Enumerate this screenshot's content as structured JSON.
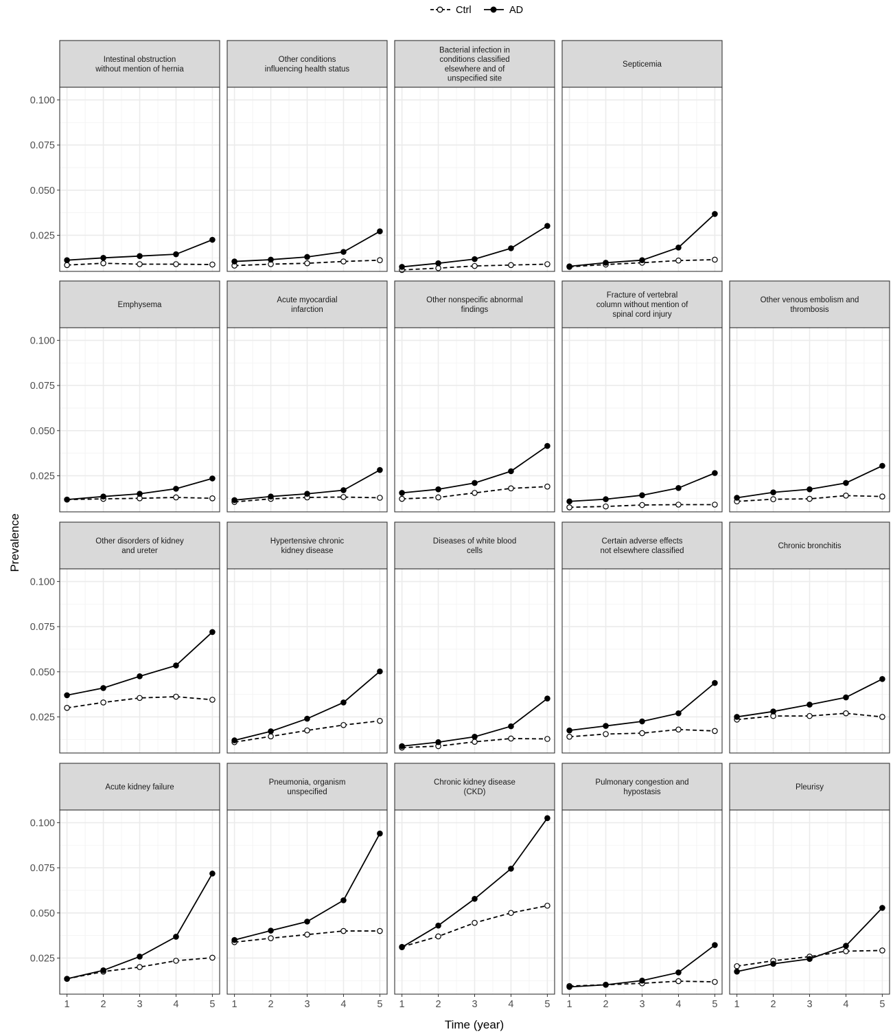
{
  "legend": {
    "items": [
      {
        "label": "Ctrl",
        "style": "dashed",
        "marker": "open"
      },
      {
        "label": "AD",
        "style": "solid",
        "marker": "filled"
      }
    ]
  },
  "axes": {
    "xlabel": "Time (year)",
    "ylabel": "Prevalence",
    "y_ticks": [
      "0.100",
      "0.075",
      "0.050",
      "0.025"
    ],
    "x_ticks": [
      "1",
      "2",
      "3",
      "4",
      "5"
    ]
  },
  "colors": {
    "strip_bg": "#d9d9d9",
    "grid": "#ebebeb",
    "line": "#000000"
  },
  "chart_data": {
    "type": "line",
    "facet_layout": {
      "rows": 4,
      "cols": 5
    },
    "x": [
      1,
      2,
      3,
      4,
      5
    ],
    "ylim": [
      0.005,
      0.107
    ],
    "y_ticks": [
      0.025,
      0.05,
      0.075,
      0.1
    ],
    "xlabel": "Time (year)",
    "ylabel": "Prevalence",
    "legend_position": "top",
    "grid": true,
    "series_names": [
      "Ctrl",
      "AD"
    ],
    "panels": [
      {
        "title": "Intestinal obstruction without mention of hernia",
        "row": 0,
        "col": 0,
        "Ctrl": [
          0.0085,
          0.0095,
          0.009,
          0.009,
          0.0088
        ],
        "AD": [
          0.0112,
          0.0125,
          0.0135,
          0.0145,
          0.0225
        ]
      },
      {
        "title": "Other conditions influencing health status",
        "row": 0,
        "col": 1,
        "Ctrl": [
          0.0082,
          0.009,
          0.0095,
          0.0105,
          0.0112
        ],
        "AD": [
          0.0105,
          0.0115,
          0.013,
          0.0158,
          0.0272
        ]
      },
      {
        "title": "Bacterial infection in conditions classified elsewhere and of unspecified site",
        "row": 0,
        "col": 2,
        "Ctrl": [
          0.0058,
          0.0068,
          0.008,
          0.0085,
          0.009
        ],
        "AD": [
          0.0075,
          0.0095,
          0.0118,
          0.0178,
          0.0302
        ]
      },
      {
        "title": "Septicemia",
        "row": 0,
        "col": 3,
        "Ctrl": [
          0.0075,
          0.0088,
          0.0098,
          0.011,
          0.0115
        ],
        "AD": [
          0.0078,
          0.0098,
          0.0112,
          0.0182,
          0.0368
        ]
      },
      {
        "title": "Emphysema",
        "row": 1,
        "col": 0,
        "Ctrl": [
          0.0118,
          0.0122,
          0.0125,
          0.013,
          0.0125
        ],
        "AD": [
          0.0118,
          0.0135,
          0.015,
          0.0178,
          0.0235
        ]
      },
      {
        "title": "Acute myocardial infarction",
        "row": 1,
        "col": 1,
        "Ctrl": [
          0.0105,
          0.0122,
          0.013,
          0.0132,
          0.0128
        ],
        "AD": [
          0.0115,
          0.0135,
          0.015,
          0.017,
          0.0282
        ]
      },
      {
        "title": "Other nonspecific abnormal findings",
        "row": 1,
        "col": 2,
        "Ctrl": [
          0.0122,
          0.013,
          0.0155,
          0.018,
          0.019
        ],
        "AD": [
          0.0155,
          0.0175,
          0.021,
          0.0275,
          0.0415
        ]
      },
      {
        "title": "Fracture of vertebral column without mention of spinal cord injury",
        "row": 1,
        "col": 3,
        "Ctrl": [
          0.0075,
          0.008,
          0.0088,
          0.009,
          0.009
        ],
        "AD": [
          0.0108,
          0.012,
          0.0142,
          0.0182,
          0.0265
        ]
      },
      {
        "title": "Other venous embolism and thrombosis",
        "row": 1,
        "col": 4,
        "Ctrl": [
          0.0108,
          0.012,
          0.0122,
          0.014,
          0.0135
        ],
        "AD": [
          0.0128,
          0.0158,
          0.0175,
          0.021,
          0.0305
        ]
      },
      {
        "title": "Other disorders of kidney and ureter",
        "row": 2,
        "col": 0,
        "Ctrl": [
          0.03,
          0.033,
          0.0355,
          0.0362,
          0.0345
        ],
        "AD": [
          0.037,
          0.041,
          0.0475,
          0.0535,
          0.072
        ]
      },
      {
        "title": "Hypertensive chronic kidney disease",
        "row": 2,
        "col": 1,
        "Ctrl": [
          0.011,
          0.0142,
          0.0175,
          0.0205,
          0.0228
        ],
        "AD": [
          0.012,
          0.017,
          0.024,
          0.033,
          0.0502
        ]
      },
      {
        "title": "Diseases of white blood cells",
        "row": 2,
        "col": 2,
        "Ctrl": [
          0.008,
          0.0088,
          0.0112,
          0.013,
          0.0128
        ],
        "AD": [
          0.0088,
          0.011,
          0.014,
          0.0198,
          0.0352
        ]
      },
      {
        "title": "Certain adverse effects not elsewhere classified",
        "row": 2,
        "col": 3,
        "Ctrl": [
          0.014,
          0.0155,
          0.016,
          0.018,
          0.0172
        ],
        "AD": [
          0.0175,
          0.02,
          0.0225,
          0.027,
          0.0438
        ]
      },
      {
        "title": "Chronic bronchitis",
        "row": 2,
        "col": 4,
        "Ctrl": [
          0.0235,
          0.0255,
          0.0255,
          0.027,
          0.025
        ],
        "AD": [
          0.025,
          0.028,
          0.0318,
          0.0358,
          0.046
        ]
      },
      {
        "title": "Acute kidney failure",
        "row": 3,
        "col": 0,
        "Ctrl": [
          0.0135,
          0.0175,
          0.02,
          0.0235,
          0.0252
        ],
        "AD": [
          0.0135,
          0.0182,
          0.0258,
          0.0368,
          0.0718
        ]
      },
      {
        "title": "Pneumonia, organism unspecified",
        "row": 3,
        "col": 1,
        "Ctrl": [
          0.0338,
          0.036,
          0.038,
          0.04,
          0.04
        ],
        "AD": [
          0.035,
          0.0402,
          0.0452,
          0.057,
          0.094
        ]
      },
      {
        "title": "Chronic kidney disease (CKD)",
        "row": 3,
        "col": 2,
        "Ctrl": [
          0.0312,
          0.037,
          0.0445,
          0.05,
          0.054
        ],
        "AD": [
          0.031,
          0.043,
          0.0578,
          0.0745,
          0.1025
        ]
      },
      {
        "title": "Pulmonary congestion and hypostasis",
        "row": 3,
        "col": 3,
        "Ctrl": [
          0.0095,
          0.0102,
          0.011,
          0.0122,
          0.0118
        ],
        "AD": [
          0.009,
          0.0102,
          0.0125,
          0.017,
          0.0322
        ]
      },
      {
        "title": "Pleurisy",
        "row": 3,
        "col": 4,
        "Ctrl": [
          0.0205,
          0.0235,
          0.0258,
          0.0288,
          0.0292
        ],
        "AD": [
          0.0175,
          0.0218,
          0.0245,
          0.0318,
          0.0528
        ]
      }
    ]
  }
}
